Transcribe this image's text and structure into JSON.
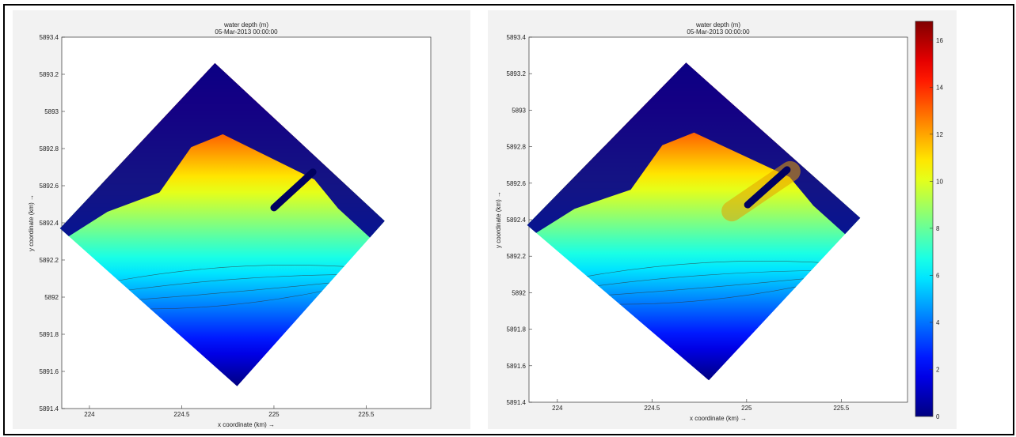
{
  "chart_data": [
    {
      "type": "heatmap",
      "title": "water depth (m)",
      "subtitle": "05-Mar-2013 00:00:00",
      "xlabel": "x coordinate (km) →",
      "ylabel": "y coordinate (km) →",
      "xlim": [
        223.85,
        225.85
      ],
      "ylim": [
        5891.4,
        5893.4
      ],
      "xticks": [
        "224",
        "224.5",
        "225",
        "225.5"
      ],
      "yticks": [
        "5891.4",
        "5891.6",
        "5891.8",
        "5892",
        "5892.2",
        "5892.4",
        "5892.6",
        "5892.8",
        "5893",
        "5893.2",
        "5893.4"
      ],
      "colorbar": false,
      "domain_corners": [
        [
          224.68,
          5893.26
        ],
        [
          225.6,
          5892.41
        ],
        [
          224.8,
          5891.52
        ],
        [
          223.84,
          5892.37
        ]
      ],
      "breakwater": false
    },
    {
      "type": "heatmap",
      "title": "water depth (m)",
      "subtitle": "05-Mar-2013 00:00:00",
      "xlabel": "x coordinate (km) →",
      "ylabel": "y coordinate (km) →",
      "xlim": [
        223.85,
        225.85
      ],
      "ylim": [
        5891.4,
        5893.4
      ],
      "xticks": [
        "224",
        "224.5",
        "225",
        "225.5"
      ],
      "yticks": [
        "5891.4",
        "5891.6",
        "5891.8",
        "5892",
        "5892.2",
        "5892.4",
        "5892.6",
        "5892.8",
        "5893",
        "5893.2",
        "5893.4"
      ],
      "colorbar": true,
      "colorbar_range": [
        0,
        16.8
      ],
      "colorbar_ticks": [
        "0",
        "2",
        "4",
        "6",
        "8",
        "10",
        "12",
        "14",
        "16"
      ],
      "domain_corners": [
        [
          224.68,
          5893.26
        ],
        [
          225.6,
          5892.41
        ],
        [
          224.8,
          5891.52
        ],
        [
          223.84,
          5892.37
        ]
      ],
      "breakwater": true
    }
  ]
}
